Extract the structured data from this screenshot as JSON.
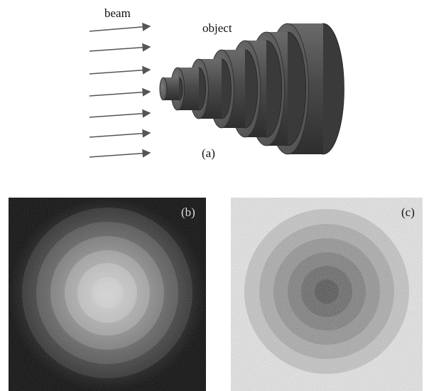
{
  "labels": {
    "beam": "beam",
    "object": "object"
  },
  "panels": [
    {
      "label": "(a)"
    },
    {
      "label": "(b)"
    },
    {
      "label": "(c)"
    }
  ]
}
